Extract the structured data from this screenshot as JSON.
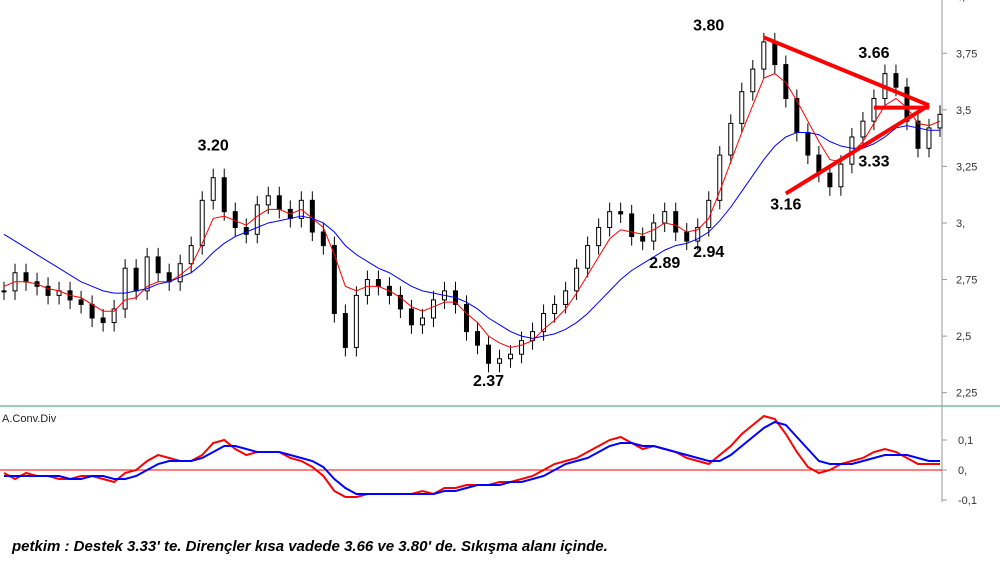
{
  "chart_data": [
    {
      "type": "candlestick",
      "title": "",
      "ylim": [
        2.2,
        3.95
      ],
      "y_ticks": [
        "4,",
        "3,75",
        "3,5",
        "3,25",
        "3,",
        "2,75",
        "2,5",
        "2,25"
      ],
      "y_tick_values": [
        4.0,
        3.75,
        3.5,
        3.25,
        3.0,
        2.75,
        2.5,
        2.25
      ],
      "grid": false,
      "series": [
        {
          "name": "",
          "color": "#000000",
          "values": [
            2.7,
            2.78,
            2.74,
            2.72,
            2.68,
            2.7,
            2.66,
            2.64,
            2.58,
            2.56,
            2.62,
            2.8,
            2.7,
            2.85,
            2.78,
            2.74,
            2.82,
            2.9,
            3.1,
            3.2,
            3.05,
            2.98,
            2.95,
            3.08,
            3.12,
            3.06,
            3.02,
            3.1,
            2.96,
            2.9,
            2.6,
            2.45,
            2.68,
            2.75,
            2.72,
            2.68,
            2.62,
            2.55,
            2.58,
            2.66,
            2.7,
            2.64,
            2.52,
            2.46,
            2.38,
            2.4,
            2.42,
            2.48,
            2.52,
            2.6,
            2.64,
            2.7,
            2.8,
            2.9,
            2.98,
            3.05,
            3.04,
            2.94,
            2.92,
            3.0,
            3.05,
            2.96,
            2.92,
            2.98,
            3.1,
            3.3,
            3.44,
            3.58,
            3.68,
            3.8,
            3.7,
            3.55,
            3.4,
            3.3,
            3.22,
            3.16,
            3.26,
            3.38,
            3.45,
            3.55,
            3.66,
            3.6,
            3.45,
            3.33,
            3.42,
            3.48
          ]
        },
        {
          "name": "",
          "color": "#ff0000",
          "values": [
            2.72,
            2.74,
            2.74,
            2.73,
            2.71,
            2.7,
            2.68,
            2.67,
            2.64,
            2.61,
            2.61,
            2.66,
            2.67,
            2.72,
            2.74,
            2.74,
            2.77,
            2.81,
            2.91,
            3.02,
            3.03,
            3.01,
            2.99,
            3.03,
            3.06,
            3.06,
            3.04,
            3.06,
            3.02,
            2.98,
            2.86,
            2.72,
            2.7,
            2.72,
            2.72,
            2.7,
            2.67,
            2.63,
            2.61,
            2.63,
            2.65,
            2.65,
            2.6,
            2.56,
            2.5,
            2.47,
            2.45,
            2.46,
            2.48,
            2.53,
            2.57,
            2.62,
            2.69,
            2.77,
            2.85,
            2.93,
            2.97,
            2.96,
            2.95,
            2.97,
            3.0,
            2.99,
            2.96,
            2.97,
            3.02,
            3.14,
            3.27,
            3.4,
            3.52,
            3.64,
            3.66,
            3.62,
            3.54,
            3.45,
            3.36,
            3.28,
            3.27,
            3.31,
            3.36,
            3.44,
            3.52,
            3.55,
            3.51,
            3.44,
            3.43,
            3.45
          ]
        },
        {
          "name": "",
          "color": "#0000ff",
          "values": [
            2.95,
            2.92,
            2.89,
            2.86,
            2.83,
            2.8,
            2.77,
            2.74,
            2.72,
            2.7,
            2.69,
            2.69,
            2.7,
            2.71,
            2.73,
            2.74,
            2.76,
            2.78,
            2.82,
            2.87,
            2.91,
            2.94,
            2.96,
            2.98,
            3.0,
            3.01,
            3.02,
            3.03,
            3.02,
            3.0,
            2.96,
            2.9,
            2.86,
            2.83,
            2.8,
            2.78,
            2.75,
            2.72,
            2.7,
            2.69,
            2.68,
            2.67,
            2.65,
            2.62,
            2.58,
            2.55,
            2.52,
            2.5,
            2.49,
            2.5,
            2.51,
            2.53,
            2.56,
            2.6,
            2.65,
            2.7,
            2.75,
            2.79,
            2.82,
            2.85,
            2.88,
            2.9,
            2.91,
            2.93,
            2.96,
            3.01,
            3.07,
            3.14,
            3.21,
            3.28,
            3.34,
            3.38,
            3.4,
            3.4,
            3.39,
            3.36,
            3.34,
            3.33,
            3.33,
            3.35,
            3.38,
            3.42,
            3.43,
            3.42,
            3.41,
            3.41
          ]
        }
      ],
      "annotations": [
        {
          "text": "3.20",
          "x_index": 19,
          "y": 3.32
        },
        {
          "text": "2.37",
          "x_index": 44,
          "y": 2.28
        },
        {
          "text": "2.89",
          "x_index": 60,
          "y": 2.8
        },
        {
          "text": "2.94",
          "x_index": 64,
          "y": 2.85
        },
        {
          "text": "3.80",
          "x_index": 64,
          "y": 3.85
        },
        {
          "text": "3.16",
          "x_index": 71,
          "y": 3.06
        },
        {
          "text": "3.66",
          "x_index": 79,
          "y": 3.73
        },
        {
          "text": "3.33",
          "x_index": 79,
          "y": 3.25
        }
      ],
      "trendlines": [
        {
          "color": "#ff0000",
          "from": [
            69,
            3.82
          ],
          "to": [
            84,
            3.52
          ]
        },
        {
          "color": "#ff0000",
          "from": [
            71,
            3.13
          ],
          "to": [
            84,
            3.52
          ]
        },
        {
          "color": "#ff0000",
          "from": [
            79,
            3.51
          ],
          "to": [
            84,
            3.51
          ]
        }
      ]
    },
    {
      "type": "line",
      "title": "A.Conv.Div",
      "ylim": [
        -0.1,
        0.2
      ],
      "y_ticks": [
        "0,1",
        "0,",
        "-0,1"
      ],
      "y_tick_values": [
        0.1,
        0.0,
        -0.1
      ],
      "zero_line_color": "#ff0000",
      "series": [
        {
          "name": "",
          "color": "#ff0000",
          "values": [
            -0.01,
            -0.03,
            -0.01,
            -0.02,
            -0.02,
            -0.03,
            -0.03,
            -0.02,
            -0.02,
            -0.03,
            -0.04,
            -0.01,
            0.0,
            0.03,
            0.05,
            0.04,
            0.03,
            0.03,
            0.05,
            0.09,
            0.1,
            0.07,
            0.05,
            0.06,
            0.06,
            0.06,
            0.04,
            0.03,
            0.01,
            -0.02,
            -0.07,
            -0.09,
            -0.09,
            -0.08,
            -0.08,
            -0.08,
            -0.08,
            -0.08,
            -0.07,
            -0.08,
            -0.06,
            -0.06,
            -0.05,
            -0.05,
            -0.05,
            -0.04,
            -0.04,
            -0.03,
            -0.02,
            0.0,
            0.02,
            0.03,
            0.04,
            0.06,
            0.08,
            0.1,
            0.11,
            0.09,
            0.07,
            0.08,
            0.07,
            0.06,
            0.04,
            0.03,
            0.02,
            0.05,
            0.08,
            0.12,
            0.15,
            0.18,
            0.17,
            0.12,
            0.06,
            0.01,
            -0.01,
            0.0,
            0.02,
            0.03,
            0.04,
            0.06,
            0.07,
            0.06,
            0.04,
            0.02,
            0.02,
            0.02
          ]
        },
        {
          "name": "",
          "color": "#0000ff",
          "values": [
            -0.02,
            -0.02,
            -0.02,
            -0.02,
            -0.02,
            -0.02,
            -0.03,
            -0.03,
            -0.02,
            -0.02,
            -0.03,
            -0.03,
            -0.02,
            0.0,
            0.02,
            0.03,
            0.03,
            0.03,
            0.04,
            0.06,
            0.08,
            0.08,
            0.07,
            0.06,
            0.06,
            0.06,
            0.05,
            0.04,
            0.03,
            0.01,
            -0.03,
            -0.06,
            -0.08,
            -0.08,
            -0.08,
            -0.08,
            -0.08,
            -0.08,
            -0.08,
            -0.08,
            -0.07,
            -0.07,
            -0.06,
            -0.05,
            -0.05,
            -0.05,
            -0.04,
            -0.04,
            -0.03,
            -0.02,
            0.0,
            0.02,
            0.03,
            0.04,
            0.06,
            0.08,
            0.09,
            0.09,
            0.08,
            0.08,
            0.07,
            0.06,
            0.05,
            0.04,
            0.03,
            0.03,
            0.05,
            0.08,
            0.11,
            0.14,
            0.16,
            0.15,
            0.11,
            0.07,
            0.03,
            0.02,
            0.02,
            0.02,
            0.03,
            0.04,
            0.05,
            0.05,
            0.05,
            0.04,
            0.03,
            0.03
          ]
        }
      ]
    }
  ],
  "caption": "petkim : Destek 3.33' te. Dirençler kısa vadede 3.66 ve 3.80' de. Sıkışma alanı içinde."
}
